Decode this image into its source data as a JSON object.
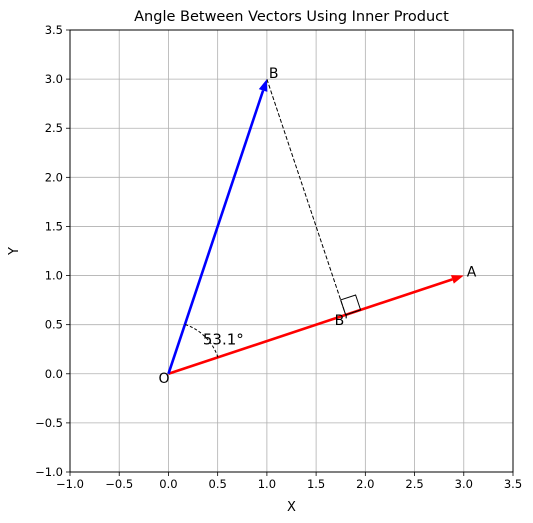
{
  "chart_data": {
    "type": "vector-diagram",
    "title": "Angle Between Vectors Using Inner Product",
    "xlabel": "X",
    "ylabel": "Y",
    "xlim": [
      -1.0,
      3.5
    ],
    "ylim": [
      -1.0,
      3.5
    ],
    "xticks": [
      -1.0,
      -0.5,
      0.0,
      0.5,
      1.0,
      1.5,
      2.0,
      2.5,
      3.0,
      3.5
    ],
    "yticks": [
      -1.0,
      -0.5,
      0.0,
      0.5,
      1.0,
      1.5,
      2.0,
      2.5,
      3.0,
      3.5
    ],
    "xtick_labels": [
      "−1.0",
      "−0.5",
      "0.0",
      "0.5",
      "1.0",
      "1.5",
      "2.0",
      "2.5",
      "3.0",
      "3.5"
    ],
    "ytick_labels": [
      "−1.0",
      "−0.5",
      "0.0",
      "0.5",
      "1.0",
      "1.5",
      "2.0",
      "2.5",
      "3.0",
      "3.5"
    ],
    "grid": true,
    "origin": {
      "label": "O",
      "x": 0,
      "y": 0
    },
    "vectors": [
      {
        "label": "A",
        "x": 3,
        "y": 1,
        "color": "#ff0000"
      },
      {
        "label": "B",
        "x": 1,
        "y": 3,
        "color": "#0000ff"
      }
    ],
    "projection": {
      "label": "B'",
      "x": 1.8,
      "y": 0.6
    },
    "angle_label": "53.1°",
    "angle_degrees": 53.13
  }
}
